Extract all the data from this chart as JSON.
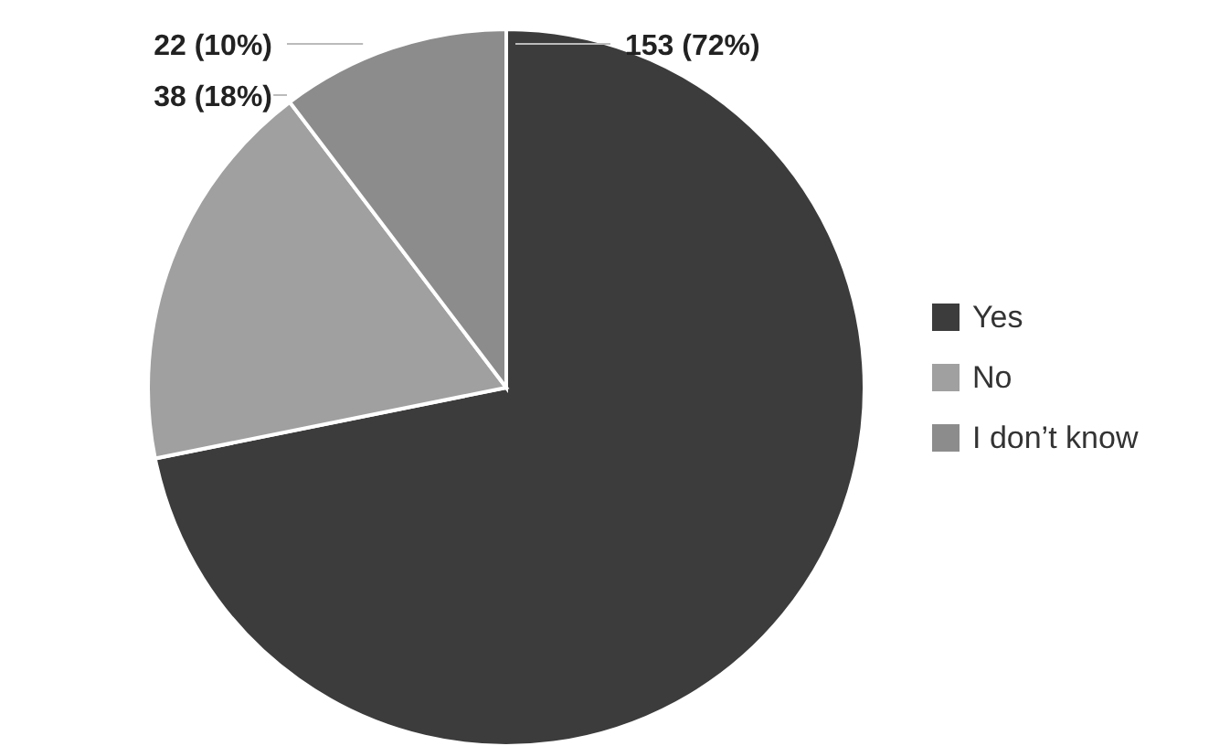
{
  "chart_data": {
    "type": "pie",
    "categories": [
      "Yes",
      "No",
      "I don’t know"
    ],
    "values": [
      153,
      38,
      22
    ],
    "colors": [
      "#3c3c3c",
      "#a0a0a0",
      "#8c8c8c"
    ],
    "value_labels": [
      "153 (72%)",
      "38 (18%)",
      "22 (10%)"
    ],
    "legend": "right"
  }
}
